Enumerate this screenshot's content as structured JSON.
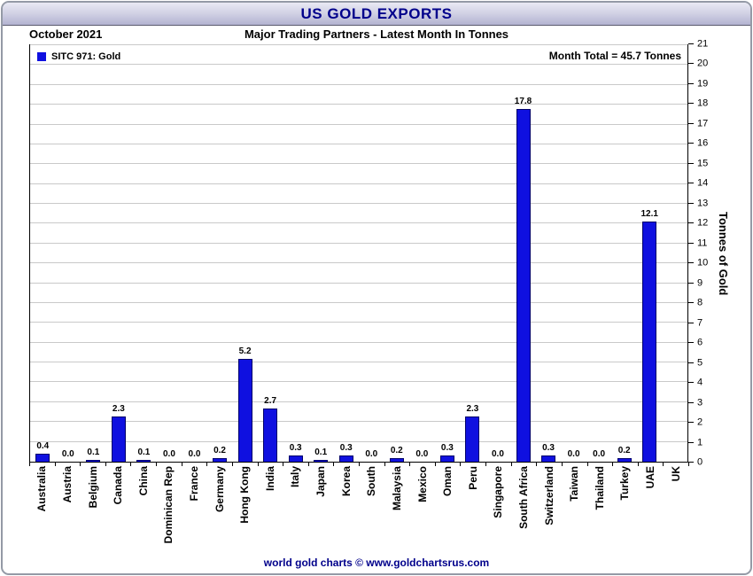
{
  "chart_data": {
    "type": "bar",
    "title": "US GOLD EXPORTS",
    "period": "October 2021",
    "subtitle": "Major Trading Partners - Latest Month In Tonnes",
    "series_name": "SITC 971: Gold",
    "month_total_label": "Month Total = 45.7 Tonnes",
    "month_total": 45.7,
    "ylabel": "Tonnes of Gold",
    "ylim": [
      0,
      21
    ],
    "ytick_step": 1,
    "grid": true,
    "yaxis_side": "right",
    "legend_position": "top-left",
    "categories": [
      "Australia",
      "Austria",
      "Belgium",
      "Canada",
      "China",
      "Dominican Rep",
      "France",
      "Germany",
      "Hong Kong",
      "India",
      "Italy",
      "Japan",
      "Korea",
      "South",
      "Malaysia",
      "Mexico",
      "Oman",
      "Peru",
      "Singapore",
      "South Africa",
      "Switzerland",
      "Taiwan",
      "Thailand",
      "Turkey",
      "UAE",
      "UK"
    ],
    "values": [
      0.4,
      0.0,
      0.1,
      2.3,
      0.1,
      0.0,
      0.0,
      0.2,
      5.2,
      2.7,
      0.3,
      0.1,
      0.3,
      0.0,
      0.2,
      0.0,
      0.3,
      2.3,
      0.0,
      17.8,
      0.3,
      0.0,
      0.0,
      0.2,
      12.1,
      0.0
    ],
    "value_labels": [
      "0.4",
      "0.0",
      "0.1",
      "2.3",
      "0.1",
      "0.0",
      "0.0",
      "0.2",
      "5.2",
      "2.7",
      "0.3",
      "0.1",
      "0.3",
      "0.0",
      "0.2",
      "0.0",
      "0.3",
      "2.3",
      "0.0",
      "17.8",
      "0.3",
      "0.0",
      "0.0",
      "0.2",
      "12.1",
      ""
    ]
  },
  "footer": {
    "text": "world gold charts © www.goldchartsrus.com"
  },
  "colors": {
    "bar": "#0f10e0",
    "navy": "#00008b",
    "gridline": "#c9c9c9",
    "titlebar_top": "#e9e9f4",
    "titlebar_bottom": "#b3b3d1"
  }
}
